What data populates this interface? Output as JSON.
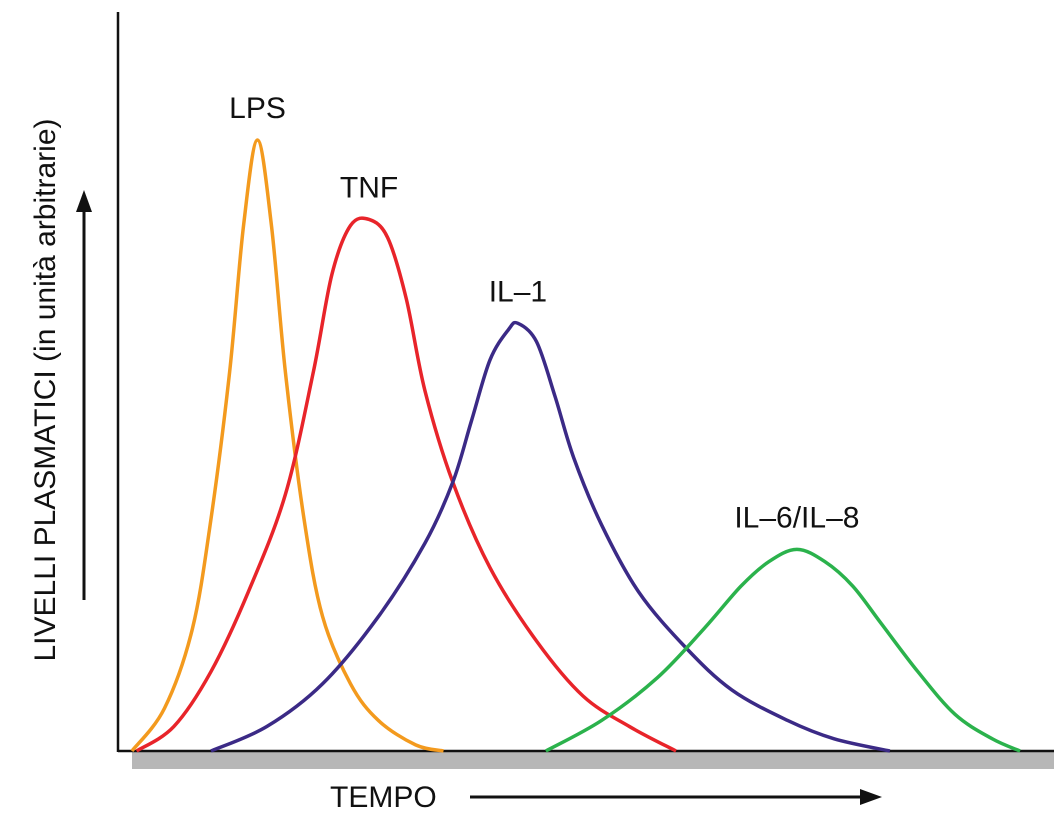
{
  "chart_data": {
    "type": "line",
    "title": "",
    "xlabel": "TEMPO",
    "ylabel": "LIVELLI PLASMATICI (in unità arbitrarie)",
    "x_unit": "arbitrary",
    "y_unit": "arbitrary",
    "xlim": [
      0,
      100
    ],
    "ylim": [
      0,
      100
    ],
    "grid": false,
    "legend": "none (curves labeled directly above their peaks)",
    "ticks": "none",
    "series": [
      {
        "name": "LPS",
        "color": "#f39a1e",
        "peak": {
          "x": 15,
          "y": 100
        },
        "points": [
          [
            1.5,
            0
          ],
          [
            5,
            7
          ],
          [
            8,
            20
          ],
          [
            10,
            38
          ],
          [
            12,
            62
          ],
          [
            13.5,
            86
          ],
          [
            15,
            100
          ],
          [
            16.5,
            86
          ],
          [
            18,
            62
          ],
          [
            20,
            38
          ],
          [
            22,
            22
          ],
          [
            25,
            11
          ],
          [
            28,
            5
          ],
          [
            32,
            1
          ],
          [
            35,
            0
          ]
        ]
      },
      {
        "name": "TNF",
        "color": "#e8242a",
        "peak": {
          "x": 27,
          "y": 87
        },
        "points": [
          [
            2,
            0
          ],
          [
            6,
            4
          ],
          [
            10,
            13
          ],
          [
            14,
            26
          ],
          [
            18,
            42
          ],
          [
            21,
            62
          ],
          [
            23,
            78
          ],
          [
            25,
            86
          ],
          [
            27,
            87
          ],
          [
            29,
            84
          ],
          [
            31,
            74
          ],
          [
            33,
            59
          ],
          [
            36,
            44
          ],
          [
            40,
            30
          ],
          [
            45,
            18
          ],
          [
            50,
            9
          ],
          [
            55,
            4
          ],
          [
            60,
            0
          ]
        ]
      },
      {
        "name": "IL–1",
        "color": "#3b2a86",
        "peak": {
          "x": 43,
          "y": 70
        },
        "points": [
          [
            10,
            0
          ],
          [
            16,
            4
          ],
          [
            22,
            11
          ],
          [
            28,
            22
          ],
          [
            33,
            34
          ],
          [
            36,
            44
          ],
          [
            38,
            54
          ],
          [
            40,
            64
          ],
          [
            42,
            69
          ],
          [
            43,
            70
          ],
          [
            45,
            67
          ],
          [
            47,
            58
          ],
          [
            49,
            48
          ],
          [
            52,
            37
          ],
          [
            56,
            26
          ],
          [
            61,
            17
          ],
          [
            66,
            10
          ],
          [
            72,
            5
          ],
          [
            77,
            2
          ],
          [
            83,
            0
          ]
        ]
      },
      {
        "name": "IL–6/IL–8",
        "color": "#2bb24c",
        "peak": {
          "x": 73,
          "y": 33
        },
        "points": [
          [
            46,
            0
          ],
          [
            52,
            5
          ],
          [
            58,
            12
          ],
          [
            63,
            20
          ],
          [
            67,
            27
          ],
          [
            70,
            31
          ],
          [
            73,
            33
          ],
          [
            76,
            31
          ],
          [
            79,
            27
          ],
          [
            82,
            21
          ],
          [
            86,
            13
          ],
          [
            90,
            6
          ],
          [
            94,
            2
          ],
          [
            97,
            0
          ]
        ]
      }
    ]
  }
}
